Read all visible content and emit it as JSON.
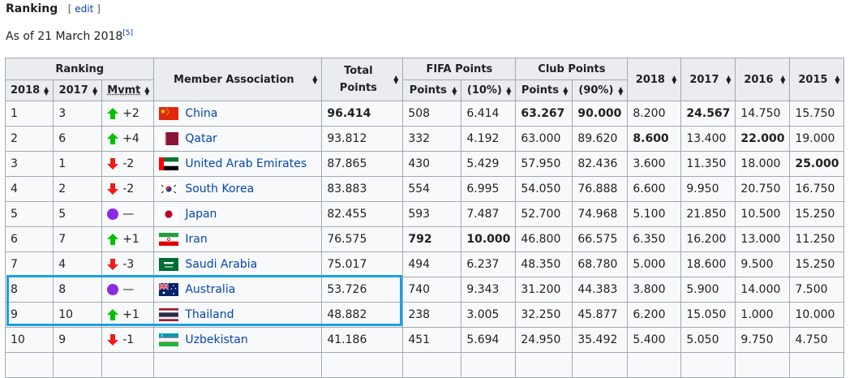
{
  "section": {
    "title": "Ranking",
    "edit_open": "[",
    "edit_label": "edit",
    "edit_close": "]"
  },
  "as_of": {
    "text": "As of 21 March 2018",
    "ref": "[5]"
  },
  "headers": {
    "ranking": "Ranking",
    "year_2018": "2018",
    "year_2017": "2017",
    "movement": "Mvmt",
    "member_association": "Member Association",
    "total_points": "Total Points",
    "fifa_points": "FIFA Points",
    "fifa_sub_points": "Points",
    "fifa_sub_pct": "(10%)",
    "club_points": "Club Points",
    "club_sub_points": "Points",
    "club_sub_pct": "(90%)",
    "col_2018": "2018",
    "col_2017": "2017",
    "col_2016": "2016",
    "col_2015": "2015"
  },
  "colors": {
    "up": "#00c000",
    "down": "#ee1c1c",
    "same": "#8a2be2",
    "link": "#0645ad",
    "highlight": "#1ba1e2"
  },
  "rows": [
    {
      "r2018": "1",
      "r2017": "3",
      "mv_type": "up",
      "mv": "+2",
      "flag": "china-flag-icon",
      "country": "China",
      "total": "96.414",
      "fifa_pts": "508",
      "fifa_pct": "6.414",
      "club_pts": "63.267",
      "club_pct": "90.000",
      "y2018": "8.200",
      "y2017": "24.567",
      "y2016": "14.750",
      "y2015": "15.750"
    },
    {
      "r2018": "2",
      "r2017": "6",
      "mv_type": "up",
      "mv": "+4",
      "flag": "qatar-flag-icon",
      "country": "Qatar",
      "total": "93.812",
      "fifa_pts": "332",
      "fifa_pct": "4.192",
      "club_pts": "63.000",
      "club_pct": "89.620",
      "y2018": "8.600",
      "y2017": "13.400",
      "y2016": "22.000",
      "y2015": "19.000"
    },
    {
      "r2018": "3",
      "r2017": "1",
      "mv_type": "down",
      "mv": "-2",
      "flag": "uae-flag-icon",
      "country": "United Arab Emirates",
      "total": "87.865",
      "fifa_pts": "430",
      "fifa_pct": "5.429",
      "club_pts": "57.950",
      "club_pct": "82.436",
      "y2018": "3.600",
      "y2017": "11.350",
      "y2016": "18.000",
      "y2015": "25.000"
    },
    {
      "r2018": "4",
      "r2017": "2",
      "mv_type": "down",
      "mv": "-2",
      "flag": "south-korea-flag-icon",
      "country": "South Korea",
      "total": "83.883",
      "fifa_pts": "554",
      "fifa_pct": "6.995",
      "club_pts": "54.050",
      "club_pct": "76.888",
      "y2018": "6.600",
      "y2017": "9.950",
      "y2016": "20.750",
      "y2015": "16.750"
    },
    {
      "r2018": "5",
      "r2017": "5",
      "mv_type": "same",
      "mv": "—",
      "flag": "japan-flag-icon",
      "country": "Japan",
      "total": "82.455",
      "fifa_pts": "593",
      "fifa_pct": "7.487",
      "club_pts": "52.700",
      "club_pct": "74.968",
      "y2018": "5.100",
      "y2017": "21.850",
      "y2016": "10.500",
      "y2015": "15.250"
    },
    {
      "r2018": "6",
      "r2017": "7",
      "mv_type": "up",
      "mv": "+1",
      "flag": "iran-flag-icon",
      "country": "Iran",
      "total": "76.575",
      "fifa_pts": "792",
      "fifa_pct": "10.000",
      "club_pts": "46.800",
      "club_pct": "66.575",
      "y2018": "6.350",
      "y2017": "16.200",
      "y2016": "13.000",
      "y2015": "11.250"
    },
    {
      "r2018": "7",
      "r2017": "4",
      "mv_type": "down",
      "mv": "-3",
      "flag": "saudi-arabia-flag-icon",
      "country": "Saudi Arabia",
      "total": "75.017",
      "fifa_pts": "494",
      "fifa_pct": "6.237",
      "club_pts": "48.350",
      "club_pct": "68.780",
      "y2018": "5.000",
      "y2017": "18.600",
      "y2016": "9.500",
      "y2015": "15.250"
    },
    {
      "r2018": "8",
      "r2017": "8",
      "mv_type": "same",
      "mv": "—",
      "flag": "australia-flag-icon",
      "country": "Australia",
      "total": "53.726",
      "fifa_pts": "740",
      "fifa_pct": "9.343",
      "club_pts": "31.200",
      "club_pct": "44.383",
      "y2018": "3.800",
      "y2017": "5.900",
      "y2016": "14.000",
      "y2015": "7.500"
    },
    {
      "r2018": "9",
      "r2017": "10",
      "mv_type": "up",
      "mv": "+1",
      "flag": "thailand-flag-icon",
      "country": "Thailand",
      "total": "48.882",
      "fifa_pts": "238",
      "fifa_pct": "3.005",
      "club_pts": "32.250",
      "club_pct": "45.877",
      "y2018": "6.200",
      "y2017": "15.050",
      "y2016": "1.000",
      "y2015": "10.000"
    },
    {
      "r2018": "10",
      "r2017": "9",
      "mv_type": "down",
      "mv": "-1",
      "flag": "uzbekistan-flag-icon",
      "country": "Uzbekistan",
      "total": "41.186",
      "fifa_pts": "451",
      "fifa_pct": "5.694",
      "club_pts": "24.950",
      "club_pct": "35.492",
      "y2018": "5.400",
      "y2017": "5.050",
      "y2016": "9.750",
      "y2015": "4.750"
    },
    {
      "r2018": "",
      "r2017": "",
      "mv_type": "none",
      "mv": "",
      "flag": "",
      "country": "",
      "total": "",
      "fifa_pts": "",
      "fifa_pct": "",
      "club_pts": "",
      "club_pct": "",
      "y2018": "",
      "y2017": "",
      "y2016": "",
      "y2015": ""
    }
  ],
  "bold_cells": [
    [
      "0",
      "total"
    ],
    [
      "0",
      "club_pts"
    ],
    [
      "0",
      "club_pct"
    ],
    [
      "0",
      "y2017"
    ],
    [
      "1",
      "y2018"
    ],
    [
      "1",
      "y2016"
    ],
    [
      "2",
      "y2015"
    ],
    [
      "5",
      "fifa_pts"
    ],
    [
      "5",
      "fifa_pct"
    ]
  ]
}
